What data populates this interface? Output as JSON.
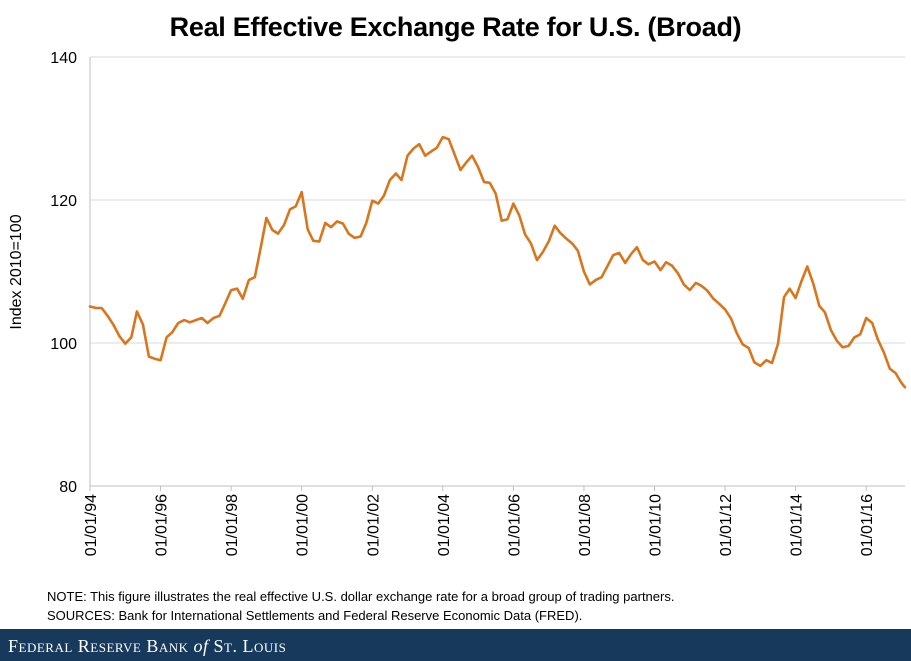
{
  "chart_data": {
    "type": "line",
    "title": "Real Effective Exchange Rate for U.S. (Broad)",
    "xlabel": "",
    "ylabel": "Index 2010=100",
    "ylim": [
      80,
      140
    ],
    "yticks": [
      80,
      100,
      120,
      140
    ],
    "xlim": [
      1994,
      2017.1
    ],
    "xticks": [
      {
        "label": "01/01/94",
        "year": 1994
      },
      {
        "label": "01/01/96",
        "year": 1996
      },
      {
        "label": "01/01/98",
        "year": 1998
      },
      {
        "label": "01/01/00",
        "year": 2000
      },
      {
        "label": "01/01/02",
        "year": 2002
      },
      {
        "label": "01/01/04",
        "year": 2004
      },
      {
        "label": "01/01/06",
        "year": 2006
      },
      {
        "label": "01/01/08",
        "year": 2008
      },
      {
        "label": "01/01/10",
        "year": 2010
      },
      {
        "label": "01/01/12",
        "year": 2012
      },
      {
        "label": "01/01/14",
        "year": 2014
      },
      {
        "label": "01/01/16",
        "year": 2016
      }
    ],
    "grid": "horizontal",
    "legend": "none",
    "series": [
      {
        "name": "Real Effective Exchange Rate for U.S. (Broad)",
        "color": "#d8761e",
        "points": [
          [
            1994.0,
            105.1
          ],
          [
            1994.17,
            104.9
          ],
          [
            1994.33,
            104.9
          ],
          [
            1994.5,
            103.8
          ],
          [
            1994.67,
            102.5
          ],
          [
            1994.83,
            101.0
          ],
          [
            1995.0,
            99.9
          ],
          [
            1995.17,
            100.8
          ],
          [
            1995.33,
            104.4
          ],
          [
            1995.5,
            102.6
          ],
          [
            1995.67,
            98.1
          ],
          [
            1995.83,
            97.8
          ],
          [
            1996.0,
            97.6
          ],
          [
            1996.17,
            100.8
          ],
          [
            1996.33,
            101.5
          ],
          [
            1996.5,
            102.8
          ],
          [
            1996.67,
            103.2
          ],
          [
            1996.83,
            102.9
          ],
          [
            1997.0,
            103.2
          ],
          [
            1997.17,
            103.5
          ],
          [
            1997.33,
            102.8
          ],
          [
            1997.5,
            103.5
          ],
          [
            1997.67,
            103.8
          ],
          [
            1997.83,
            105.5
          ],
          [
            1998.0,
            107.4
          ],
          [
            1998.17,
            107.6
          ],
          [
            1998.33,
            106.2
          ],
          [
            1998.5,
            108.8
          ],
          [
            1998.67,
            109.2
          ],
          [
            1998.83,
            113.1
          ],
          [
            1999.0,
            117.5
          ],
          [
            1999.17,
            115.8
          ],
          [
            1999.33,
            115.3
          ],
          [
            1999.5,
            116.5
          ],
          [
            1999.67,
            118.7
          ],
          [
            1999.83,
            119.1
          ],
          [
            2000.0,
            121.1
          ],
          [
            2000.17,
            115.9
          ],
          [
            2000.33,
            114.3
          ],
          [
            2000.5,
            114.2
          ],
          [
            2000.67,
            116.8
          ],
          [
            2000.83,
            116.2
          ],
          [
            2001.0,
            117.0
          ],
          [
            2001.17,
            116.7
          ],
          [
            2001.33,
            115.3
          ],
          [
            2001.5,
            114.7
          ],
          [
            2001.67,
            114.9
          ],
          [
            2001.83,
            116.8
          ],
          [
            2002.0,
            119.9
          ],
          [
            2002.17,
            119.5
          ],
          [
            2002.33,
            120.6
          ],
          [
            2002.5,
            122.8
          ],
          [
            2002.67,
            123.7
          ],
          [
            2002.83,
            122.8
          ],
          [
            2003.0,
            126.2
          ],
          [
            2003.17,
            127.2
          ],
          [
            2003.33,
            127.8
          ],
          [
            2003.5,
            126.2
          ],
          [
            2003.67,
            126.8
          ],
          [
            2003.83,
            127.3
          ],
          [
            2004.0,
            128.8
          ],
          [
            2004.17,
            128.5
          ],
          [
            2004.33,
            126.4
          ],
          [
            2004.5,
            124.2
          ],
          [
            2004.67,
            125.3
          ],
          [
            2004.83,
            126.2
          ],
          [
            2005.0,
            124.6
          ],
          [
            2005.17,
            122.5
          ],
          [
            2005.33,
            122.4
          ],
          [
            2005.5,
            120.9
          ],
          [
            2005.67,
            117.1
          ],
          [
            2005.83,
            117.3
          ],
          [
            2006.0,
            119.5
          ],
          [
            2006.17,
            117.8
          ],
          [
            2006.33,
            115.2
          ],
          [
            2006.5,
            113.9
          ],
          [
            2006.67,
            111.6
          ],
          [
            2006.83,
            112.7
          ],
          [
            2007.0,
            114.2
          ],
          [
            2007.17,
            116.4
          ],
          [
            2007.33,
            115.4
          ],
          [
            2007.5,
            114.6
          ],
          [
            2007.67,
            113.9
          ],
          [
            2007.83,
            112.9
          ],
          [
            2008.0,
            110.0
          ],
          [
            2008.17,
            108.2
          ],
          [
            2008.33,
            108.8
          ],
          [
            2008.5,
            109.2
          ],
          [
            2008.67,
            110.8
          ],
          [
            2008.83,
            112.3
          ],
          [
            2009.0,
            112.6
          ],
          [
            2009.17,
            111.2
          ],
          [
            2009.33,
            112.4
          ],
          [
            2009.5,
            113.4
          ],
          [
            2009.67,
            111.6
          ],
          [
            2009.83,
            111.0
          ],
          [
            2010.0,
            111.4
          ],
          [
            2010.17,
            110.2
          ],
          [
            2010.33,
            111.3
          ],
          [
            2010.5,
            110.8
          ],
          [
            2010.67,
            109.7
          ],
          [
            2010.83,
            108.2
          ],
          [
            2011.0,
            107.4
          ],
          [
            2011.17,
            108.4
          ],
          [
            2011.33,
            108.0
          ],
          [
            2011.5,
            107.3
          ],
          [
            2011.67,
            106.2
          ],
          [
            2011.83,
            105.5
          ],
          [
            2012.0,
            104.7
          ],
          [
            2012.17,
            103.4
          ],
          [
            2012.33,
            101.4
          ],
          [
            2012.5,
            99.8
          ],
          [
            2012.67,
            99.3
          ],
          [
            2012.83,
            97.3
          ],
          [
            2013.0,
            96.8
          ],
          [
            2013.17,
            97.6
          ],
          [
            2013.33,
            97.2
          ],
          [
            2013.5,
            99.9
          ],
          [
            2013.67,
            106.4
          ],
          [
            2013.83,
            107.6
          ],
          [
            2014.0,
            106.3
          ],
          [
            2014.17,
            108.7
          ],
          [
            2014.33,
            110.7
          ],
          [
            2014.5,
            108.3
          ],
          [
            2014.67,
            105.2
          ],
          [
            2014.83,
            104.3
          ],
          [
            2015.0,
            101.8
          ],
          [
            2015.17,
            100.3
          ],
          [
            2015.33,
            99.4
          ],
          [
            2015.5,
            99.6
          ],
          [
            2015.67,
            100.8
          ],
          [
            2015.83,
            101.2
          ],
          [
            2016.0,
            103.5
          ],
          [
            2016.17,
            102.8
          ],
          [
            2016.33,
            100.5
          ],
          [
            2016.5,
            98.7
          ],
          [
            2016.67,
            96.4
          ],
          [
            2016.83,
            95.8
          ],
          [
            2017.0,
            94.4
          ],
          [
            2017.1,
            93.8
          ]
        ],
        "points_scaled": true
      }
    ]
  },
  "notes": {
    "note": "NOTE: This figure illustrates the real effective U.S. dollar exchange rate for a broad group of trading partners.",
    "sources": "SOURCES: Bank for International Settlements and Federal Reserve Economic Data (FRED)."
  },
  "footer": {
    "prefix": "Federal Reserve Bank ",
    "of": "of",
    "suffix": " St. Louis"
  }
}
